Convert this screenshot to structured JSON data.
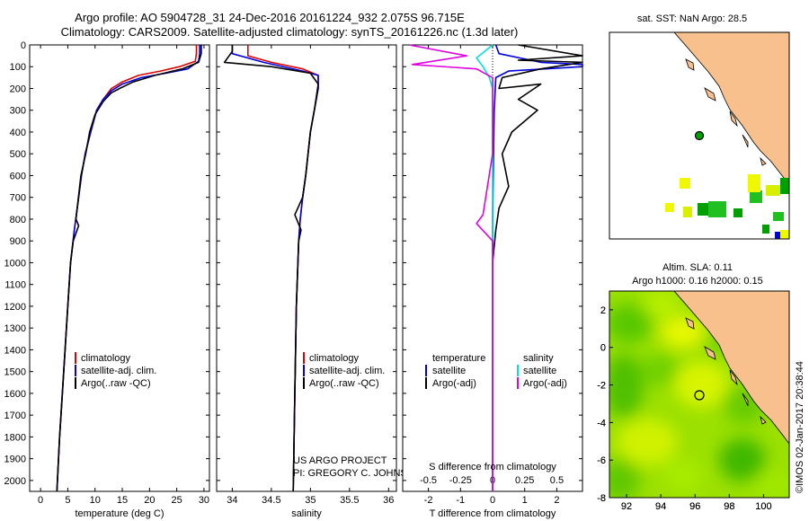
{
  "header": {
    "line1": "Argo profile: AO 5904728_31 24-Dec-2016 20161224_932 2.075S 96.715E",
    "line2": "Climatology: CARS2009. Satellite-adjusted climatology: synTS_20161226.nc (1.3d later)"
  },
  "colors": {
    "climatology": "#e00000",
    "satellite": "#0000e0",
    "argo": "#000000",
    "salinity_satellite": "#00e0e0",
    "salinity_argo": "#e000e0",
    "land": "#f7c08c",
    "dark_green": "#00a000",
    "mid_green": "#20c020",
    "yellow_green": "#d8f000",
    "yellow": "#f0f800"
  },
  "depth_axis": {
    "range": [
      0,
      2050
    ],
    "ticks": [
      0,
      100,
      200,
      300,
      400,
      500,
      600,
      700,
      800,
      900,
      1000,
      1100,
      1200,
      1300,
      1400,
      1500,
      1600,
      1700,
      1800,
      1900,
      2000
    ]
  },
  "chart_data": [
    {
      "type": "line",
      "id": "temperature",
      "xlabel": "temperature (deg C)",
      "ylabel": "",
      "xlim": [
        -2,
        31
      ],
      "xticks": [
        0,
        5,
        10,
        15,
        20,
        25,
        30
      ],
      "ylim": [
        2050,
        0
      ],
      "legend": [
        "climatology",
        "satellite-adj. clim.",
        "Argo(..raw -QC)"
      ],
      "series": [
        {
          "name": "climatology",
          "color": "#e00000",
          "x": [
            28.6,
            28.6,
            28.4,
            25.5,
            22,
            18,
            15,
            13,
            11.5,
            10.3,
            9.2,
            8.2,
            7.5,
            7,
            6.2,
            5.5,
            5,
            4.5,
            3.5,
            3
          ],
          "y": [
            0,
            40,
            75,
            100,
            120,
            140,
            170,
            200,
            250,
            300,
            400,
            500,
            600,
            700,
            850,
            1000,
            1200,
            1400,
            1800,
            2050
          ]
        },
        {
          "name": "satellite-adj. clim.",
          "color": "#0000e0",
          "x": [
            29.2,
            29.2,
            29,
            27,
            23,
            18.5,
            15,
            13,
            11.5,
            10.3,
            9.2,
            8.2,
            7.5,
            7,
            6.2,
            5.5,
            5,
            4.5,
            3.5,
            3
          ],
          "y": [
            0,
            40,
            75,
            110,
            130,
            150,
            180,
            210,
            250,
            300,
            400,
            500,
            600,
            700,
            850,
            1000,
            1200,
            1400,
            1800,
            2050
          ]
        },
        {
          "name": "Argo(..raw -QC)",
          "color": "#000000",
          "x": [
            29.5,
            29.5,
            29,
            26,
            21,
            17,
            14.5,
            13,
            11.5,
            10,
            9,
            8.3,
            7.4,
            6.5,
            7,
            6,
            5.5,
            5,
            4.5,
            4,
            3.5,
            3
          ],
          "y": [
            0,
            40,
            80,
            110,
            140,
            170,
            200,
            220,
            260,
            320,
            400,
            500,
            600,
            800,
            830,
            900,
            1000,
            1200,
            1400,
            1600,
            1800,
            2050
          ]
        }
      ]
    },
    {
      "type": "line",
      "id": "salinity",
      "xlabel": "salinity",
      "ylabel": "",
      "xlim": [
        33.8,
        36.1
      ],
      "xticks": [
        34,
        34.5,
        35,
        35.5,
        36
      ],
      "ylim": [
        2050,
        0
      ],
      "legend": [
        "climatology",
        "satellite-adj. clim.",
        "Argo(..raw -QC)"
      ],
      "series": [
        {
          "name": "climatology",
          "color": "#e00000",
          "x": [
            34.2,
            34.2,
            34.5,
            34.9,
            35.1,
            35.1,
            35.05,
            35.0,
            34.97,
            34.94,
            34.9,
            34.87,
            34.85,
            34.82,
            34.8,
            34.78
          ],
          "y": [
            0,
            50,
            80,
            110,
            140,
            200,
            300,
            400,
            500,
            600,
            700,
            800,
            900,
            1200,
            1600,
            2050
          ]
        },
        {
          "name": "satellite-adj. clim.",
          "color": "#0000e0",
          "x": [
            34.0,
            34.0,
            34.4,
            34.9,
            35.1,
            35.1,
            35.05,
            35.0,
            34.97,
            34.94,
            34.9,
            34.87,
            34.85,
            34.82,
            34.8,
            34.78
          ],
          "y": [
            0,
            40,
            80,
            120,
            140,
            200,
            300,
            400,
            500,
            600,
            700,
            800,
            900,
            1200,
            1600,
            2050
          ]
        },
        {
          "name": "Argo(..raw -QC)",
          "color": "#000000",
          "x": [
            34.0,
            34.0,
            33.9,
            34.5,
            35.0,
            35.1,
            35.05,
            35.0,
            34.97,
            34.94,
            34.9,
            34.8,
            34.88,
            34.85,
            34.82,
            34.8,
            34.78
          ],
          "y": [
            0,
            30,
            80,
            100,
            130,
            180,
            300,
            400,
            500,
            600,
            700,
            780,
            850,
            900,
            1200,
            1600,
            2050
          ]
        }
      ]
    },
    {
      "type": "line",
      "id": "difference",
      "xlabel": "T difference from climatology",
      "xlabel_top": "S difference from climatology",
      "ylabel": "",
      "xlim": [
        -2.8,
        2.8
      ],
      "xticks": [
        -2,
        -1,
        0,
        1,
        2
      ],
      "xticks_s": [
        -0.5,
        -0.25,
        0,
        0.25,
        0.5
      ],
      "ylim": [
        2050,
        0
      ],
      "legend_headers": [
        "temperature",
        "salinity"
      ],
      "legend": [
        "satellite",
        "Argo(-adj)",
        "satellite",
        "Argo(-adj)"
      ],
      "series": [
        {
          "name": "temperature satellite",
          "color": "#0000e0",
          "x": [
            0.1,
            0.2,
            1.5,
            2.8,
            2.8,
            0.5,
            0.1,
            0.05,
            0.0,
            0.0,
            0.0
          ],
          "y": [
            0,
            40,
            80,
            90,
            100,
            120,
            150,
            300,
            800,
            1500,
            2050
          ]
        },
        {
          "name": "temperature Argo(-adj)",
          "color": "#000000",
          "x": [
            0.8,
            2.8,
            0.8,
            2.8,
            1.5,
            0.3,
            0.2,
            1.5,
            0.8,
            1.4,
            0.6,
            0.3,
            0.5,
            0.2,
            0.1,
            0.0,
            0.0
          ],
          "y": [
            0,
            50,
            70,
            80,
            110,
            150,
            200,
            180,
            250,
            300,
            400,
            500,
            650,
            750,
            850,
            1000,
            2050
          ]
        },
        {
          "name": "salinity satellite",
          "color": "#00e0e0",
          "x": [
            0.0,
            -0.5,
            -0.3,
            -0.1,
            0.0,
            0.0,
            0.0,
            0.0
          ],
          "y": [
            0,
            60,
            100,
            150,
            200,
            500,
            1200,
            2050
          ]
        },
        {
          "name": "salinity Argo(-adj)",
          "color": "#e000e0",
          "x": [
            -2.6,
            -0.8,
            -2.5,
            -0.5,
            0.0,
            0.0,
            -0.3,
            -0.5,
            0.0,
            0.0
          ],
          "y": [
            0,
            50,
            90,
            110,
            150,
            500,
            780,
            820,
            900,
            2050
          ]
        }
      ]
    },
    {
      "type": "heatmap",
      "id": "sat-sst-map",
      "title": "sat. SST: NaN Argo: 28.5",
      "xticks": [
        92,
        94,
        96,
        98,
        100
      ],
      "yticks": [
        2,
        0,
        -2,
        -4,
        -6,
        -8
      ],
      "xlim": [
        91,
        101.5
      ],
      "ylim": [
        -8,
        3
      ],
      "argo_location": [
        96.715,
        -2.075
      ]
    },
    {
      "type": "heatmap",
      "id": "altim-sla-map",
      "title": "Altim. SLA: 0.11",
      "subtitle": "Argo h1000: 0.16 h2000: 0.15",
      "xticks": [
        92,
        94,
        96,
        98,
        100
      ],
      "yticks": [
        2,
        0,
        -2,
        -4,
        -6,
        -8
      ],
      "xlim": [
        91,
        101.5
      ],
      "ylim": [
        -8,
        3
      ],
      "argo_location": [
        96.715,
        -2.075
      ]
    }
  ],
  "credits": {
    "project_line1": "US ARGO PROJECT",
    "project_line2": "PI: GREGORY C. JOHNSON",
    "stamp": "©IMOS 02-Jan-2017 20:38:44"
  }
}
